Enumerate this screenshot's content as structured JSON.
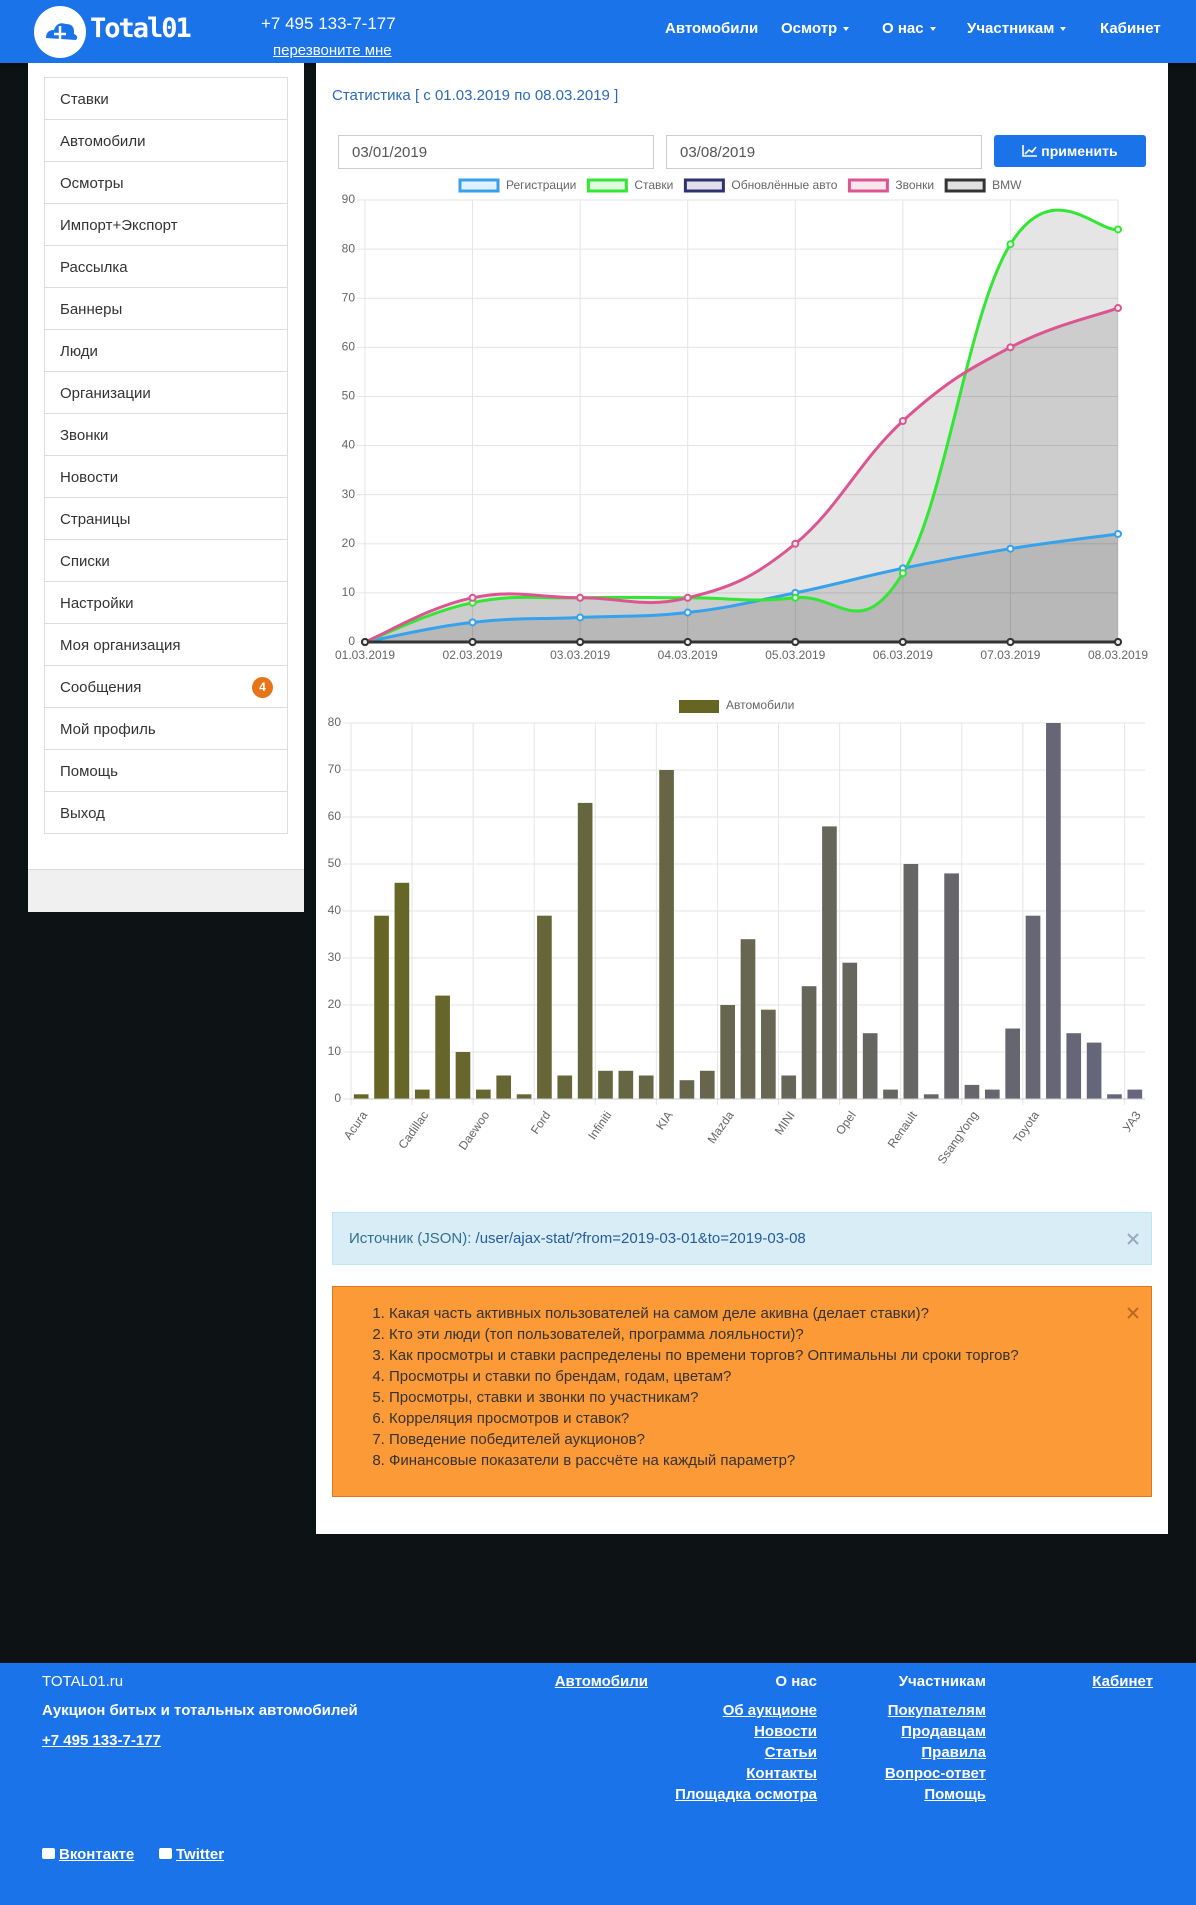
{
  "header": {
    "logo": "Total01",
    "phone": "+7 495 133-7-177",
    "callback": "перезвоните мне",
    "nav": [
      {
        "label": "Автомобили",
        "dropdown": false
      },
      {
        "label": "Осмотр",
        "dropdown": true
      },
      {
        "label": "О нас",
        "dropdown": true
      },
      {
        "label": "Участникам",
        "dropdown": true
      },
      {
        "label": "Кабинет",
        "dropdown": false
      }
    ]
  },
  "sidebar": {
    "menu": [
      "Ставки",
      "Автомобили",
      "Осмотры",
      "Импорт+Экспорт",
      "Рассылка",
      "Баннеры",
      "Люди",
      "Организации",
      "Звонки",
      "Новости",
      "Страницы",
      "Списки",
      "Настройки",
      "Моя организация",
      "Сообщения",
      "Мой профиль",
      "Помощь",
      "Выход"
    ],
    "messages_badge": 4
  },
  "stats": {
    "title": "Статистика [ с 01.03.2019 по 08.03.2019 ]",
    "date_from": "03/01/2019",
    "date_to": "03/08/2019",
    "apply": "применить"
  },
  "chart_data": [
    {
      "type": "line",
      "x": [
        "01.03.2019",
        "02.03.2019",
        "03.03.2019",
        "04.03.2019",
        "05.03.2019",
        "06.03.2019",
        "07.03.2019",
        "08.03.2019"
      ],
      "series": [
        {
          "name": "Регистрации",
          "color": "#36a2eb",
          "values": [
            0,
            4,
            5,
            6,
            10,
            15,
            19,
            22
          ]
        },
        {
          "name": "Ставки",
          "color": "#33e633",
          "values": [
            0,
            8,
            9,
            9,
            9,
            14,
            81,
            84
          ]
        },
        {
          "name": "Обновлённые авто",
          "color": "#2e3270",
          "values": [
            0,
            0,
            0,
            0,
            0,
            0,
            0,
            0
          ]
        },
        {
          "name": "Звонки",
          "color": "#dd5590",
          "values": [
            0,
            9,
            9,
            9,
            20,
            45,
            60,
            68
          ]
        },
        {
          "name": "BMW",
          "color": "#333333",
          "values": [
            0,
            0,
            0,
            0,
            0,
            0,
            0,
            0
          ]
        }
      ],
      "ylim": [
        0,
        90
      ],
      "yticks": [
        0,
        10,
        20,
        30,
        40,
        50,
        60,
        70,
        80,
        90
      ],
      "grid": true,
      "fill": true
    },
    {
      "type": "bar",
      "series": [
        {
          "name": "Автомобили",
          "color": "#666622"
        }
      ],
      "categories": [
        "Acura",
        null,
        null,
        "Cadillac",
        null,
        null,
        "Daewoo",
        null,
        null,
        "Ford",
        null,
        null,
        "Infiniti",
        null,
        null,
        "KIA",
        null,
        null,
        "Mazda",
        null,
        null,
        "MINI",
        null,
        null,
        "Opel",
        null,
        null,
        "Renault",
        null,
        null,
        "SsangYong",
        null,
        null,
        "Toyota",
        null,
        null,
        null,
        null,
        "УАЗ"
      ],
      "values": [
        1,
        39,
        46,
        2,
        22,
        10,
        2,
        5,
        1,
        39,
        5,
        63,
        6,
        6,
        5,
        70,
        4,
        6,
        20,
        34,
        19,
        5,
        24,
        58,
        29,
        14,
        2,
        50,
        1,
        48,
        3,
        2,
        15,
        39,
        80,
        14,
        12,
        1,
        2
      ],
      "color_from": "#666622",
      "color_to": "#666680",
      "ylim": [
        0,
        80
      ],
      "yticks": [
        0,
        10,
        20,
        30,
        40,
        50,
        60,
        70,
        80
      ],
      "grid": true
    }
  ],
  "source": {
    "label": "Источник (JSON):",
    "link": "/user/ajax-stat/?from=2019-03-01&to=2019-03-08"
  },
  "questions": [
    "Какая часть активных пользователей на самом деле акивна (делает ставки)?",
    "Кто эти люди (топ пользователей, программа лояльности)?",
    "Как просмотры и ставки распределены по времени торгов? Оптимальны ли сроки торгов?",
    "Просмотры и ставки по брендам, годам, цветам?",
    "Просмотры, ставки и звонки по участникам?",
    "Корреляция просмотров и ставок?",
    "Поведение победителей аукционов?",
    "Финансовые показатели в рассчёте на каждый параметр?"
  ],
  "footer": {
    "site": "TOTAL01.ru",
    "tagline": "Аукцион битых и тотальных автомобилей",
    "phone": "+7 495 133-7-177",
    "columns": [
      {
        "title": "Автомобили",
        "link": true,
        "links": []
      },
      {
        "title": "О нас",
        "link": false,
        "links": [
          "Об аукционе",
          "Новости",
          "Статьи",
          "Контакты",
          "Площадка осмотра"
        ]
      },
      {
        "title": "Участникам",
        "link": false,
        "links": [
          "Покупателям",
          "Продавцам",
          "Правила",
          "Вопрос-ответ",
          "Помощь"
        ]
      },
      {
        "title": "Кабинет",
        "link": true,
        "links": []
      }
    ],
    "social": [
      "Вконтакте",
      "Twitter"
    ]
  }
}
